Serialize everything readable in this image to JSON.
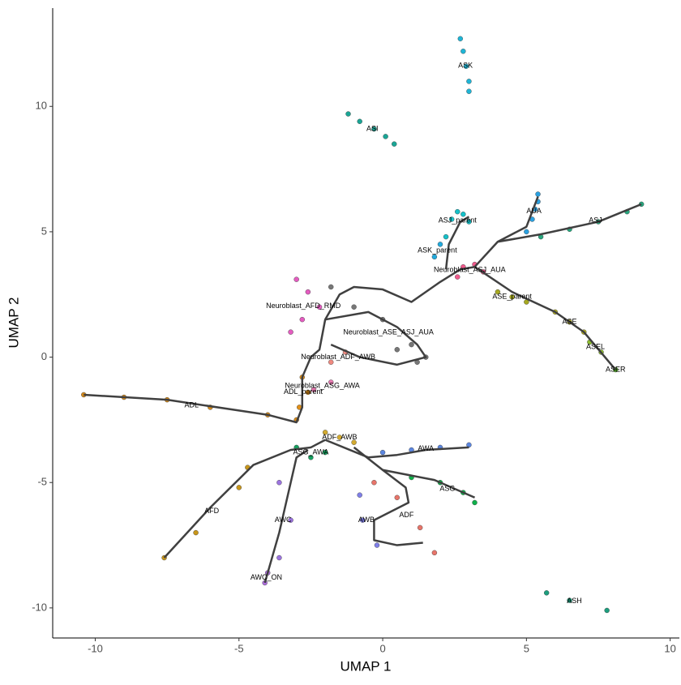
{
  "chart_data": {
    "type": "scatter",
    "xlabel": "UMAP 1",
    "ylabel": "UMAP 2",
    "xlim": [
      -11.48,
      10.32
    ],
    "ylim": [
      -11.2,
      13.92
    ],
    "xticks": [
      -10,
      -5,
      0,
      5,
      10
    ],
    "yticks": [
      -10,
      -5,
      0,
      5,
      10
    ],
    "grid": false,
    "trajectory_color": "#404040",
    "clusters": [
      {
        "label": "ASK",
        "color": "#1fb5d6",
        "x": [
          2.7,
          2.8,
          2.9,
          3.0,
          3.0
        ],
        "y": [
          12.7,
          12.2,
          11.6,
          11.0,
          10.6
        ]
      },
      {
        "label": "ASI",
        "color": "#1aa595",
        "x": [
          -1.2,
          -0.8,
          -0.3,
          0.1,
          0.4
        ],
        "y": [
          9.7,
          9.4,
          9.1,
          8.8,
          8.5
        ]
      },
      {
        "label": "AUA",
        "color": "#2aa0e0",
        "x": [
          5.0,
          5.2,
          5.3,
          5.4,
          5.4
        ],
        "y": [
          5.0,
          5.5,
          5.9,
          6.2,
          6.5
        ]
      },
      {
        "label": "ASJ_parent",
        "color": "#16c0c8",
        "x": [
          2.4,
          2.6,
          2.8,
          3.0,
          2.2
        ],
        "y": [
          5.5,
          5.8,
          5.7,
          5.4,
          4.8
        ]
      },
      {
        "label": "ASJ",
        "color": "#27a77e",
        "x": [
          5.5,
          6.5,
          7.5,
          8.5,
          9.0
        ],
        "y": [
          4.8,
          5.1,
          5.4,
          5.8,
          6.1
        ]
      },
      {
        "label": "ASK_parent",
        "color": "#22aadd",
        "x": [
          2.0,
          1.8
        ],
        "y": [
          4.5,
          4.0
        ]
      },
      {
        "label": "Neuroblast_ASJ_AUA",
        "color": "#f05a8c",
        "x": [
          2.8,
          3.2,
          3.5,
          2.6
        ],
        "y": [
          3.6,
          3.7,
          3.4,
          3.2
        ]
      },
      {
        "label": "Neuroblast_AFD_RMD",
        "color": "#e45cc0",
        "x": [
          -3.0,
          -2.6,
          -2.2,
          -2.8,
          -3.2
        ],
        "y": [
          3.1,
          2.6,
          2.0,
          1.5,
          1.0
        ]
      },
      {
        "label": "Neuroblast_ASE_ASJ_AUA",
        "color": "#777777",
        "x": [
          -1.8,
          -1.0,
          0,
          1.0,
          1.5,
          1.2,
          0.5
        ],
        "y": [
          2.8,
          2.0,
          1.5,
          0.5,
          0,
          -0.2,
          0.3
        ]
      },
      {
        "label": "ASE_parent",
        "color": "#a6a820",
        "x": [
          4.0,
          4.5,
          5.0
        ],
        "y": [
          2.6,
          2.4,
          2.2
        ]
      },
      {
        "label": "ASE",
        "color": "#b5b020",
        "x": [
          6.0,
          6.5,
          7.0
        ],
        "y": [
          1.8,
          1.4,
          1.0
        ]
      },
      {
        "label": "ASEL",
        "color": "#8cba30",
        "x": [
          7.2,
          7.6
        ],
        "y": [
          0.6,
          0.2
        ]
      },
      {
        "label": "ASER",
        "color": "#5ab82c",
        "x": [
          8.1
        ],
        "y": [
          -0.5
        ]
      },
      {
        "label": "Neuroblast_ADF_AWB",
        "color": "#f08a80",
        "x": [
          -1.8,
          -1.3
        ],
        "y": [
          -0.2,
          0.2
        ]
      },
      {
        "label": "ADL_parent",
        "color": "#e08f18",
        "x": [
          -2.8,
          -2.6,
          -2.9
        ],
        "y": [
          -0.8,
          -1.4,
          -2.0
        ]
      },
      {
        "label": "Neuroblast_ASG_AWA",
        "color": "#e67ab0",
        "x": [
          -2.4,
          -1.8
        ],
        "y": [
          -1.3,
          -1.0
        ]
      },
      {
        "label": "ADL",
        "color": "#d68a1a",
        "x": [
          -10.4,
          -9.0,
          -7.5,
          -6.0,
          -4.0,
          -3.0
        ],
        "y": [
          -1.5,
          -1.6,
          -1.7,
          -2.0,
          -2.3,
          -2.5
        ]
      },
      {
        "label": "ADF_AWB",
        "color": "#d2aa30",
        "x": [
          -2.0,
          -1.5,
          -1.0
        ],
        "y": [
          -3.0,
          -3.2,
          -3.4
        ]
      },
      {
        "label": "AWA",
        "color": "#5b86e0",
        "x": [
          0,
          1.0,
          2.0,
          3.0
        ],
        "y": [
          -3.8,
          -3.7,
          -3.6,
          -3.5
        ]
      },
      {
        "label": "ASG_AWA",
        "color": "#16a060",
        "x": [
          -3.0,
          -2.5,
          -2.0
        ],
        "y": [
          -3.6,
          -4.0,
          -3.8
        ]
      },
      {
        "label": "ASG",
        "color": "#0fb04a",
        "x": [
          1.0,
          2.0,
          2.8,
          3.2
        ],
        "y": [
          -4.8,
          -5.0,
          -5.4,
          -5.8
        ]
      },
      {
        "label": "AWB",
        "color": "#7f7fe8",
        "x": [
          -0.8,
          -0.7,
          -0.2
        ],
        "y": [
          -5.5,
          -6.5,
          -7.5
        ]
      },
      {
        "label": "AFD",
        "color": "#c8961a",
        "x": [
          -7.6,
          -6.5,
          -5.0,
          -4.7
        ],
        "y": [
          -8.0,
          -7.0,
          -5.2,
          -4.4
        ]
      },
      {
        "label": "AWC",
        "color": "#9c74e0",
        "x": [
          -3.6,
          -3.2,
          -3.6
        ],
        "y": [
          -5.0,
          -6.5,
          -8.0
        ]
      },
      {
        "label": "ADF",
        "color": "#e8756a",
        "x": [
          -0.3,
          0.5,
          1.3,
          1.8
        ],
        "y": [
          -5.0,
          -5.6,
          -6.8,
          -7.8
        ]
      },
      {
        "label": "AWC_ON",
        "color": "#b070e0",
        "x": [
          -4.1,
          -4.0
        ],
        "y": [
          -9.0,
          -8.6
        ]
      },
      {
        "label": "ASH",
        "color": "#1d9e7e",
        "x": [
          5.7,
          6.5,
          7.8
        ],
        "y": [
          -9.4,
          -9.7,
          -10.1
        ]
      }
    ],
    "trajectories": [
      {
        "x": [
          -10.4,
          -7.5,
          -4.0,
          -3.0,
          -2.8,
          -2.8,
          -2.5
        ],
        "y": [
          -1.5,
          -1.7,
          -2.3,
          -2.6,
          -2.0,
          -0.8,
          0
        ]
      },
      {
        "x": [
          -7.6,
          -6.0,
          -4.5,
          -3.2,
          -2.5,
          -2.0
        ],
        "y": [
          -8.0,
          -6.0,
          -4.3,
          -3.7,
          -3.6,
          -3.3
        ]
      },
      {
        "x": [
          -4.1,
          -3.6,
          -3.2,
          -3.0,
          -2.6
        ],
        "y": [
          -9.0,
          -7.0,
          -5.0,
          -4.0,
          -3.7
        ]
      },
      {
        "x": [
          -2.0,
          -0.5,
          0.5,
          1.5,
          3.0
        ],
        "y": [
          -3.3,
          -4.0,
          -3.9,
          -3.7,
          -3.6
        ]
      },
      {
        "x": [
          -1.0,
          0,
          0.8,
          0.9,
          -0.3,
          -0.3,
          0.5,
          1.4
        ],
        "y": [
          -3.6,
          -4.5,
          -5.2,
          -5.8,
          -6.5,
          -7.3,
          -7.5,
          -7.4
        ]
      },
      {
        "x": [
          0,
          1.8,
          3.2
        ],
        "y": [
          -4.5,
          -4.9,
          -5.6
        ]
      },
      {
        "x": [
          -2.5,
          -2.2,
          -2.0,
          -1.5,
          -1.0,
          0,
          1.0,
          1.5,
          2.0,
          2.7,
          3.2
        ],
        "y": [
          0,
          0.3,
          1.5,
          2.5,
          2.8,
          2.7,
          2.2,
          2.6,
          3.0,
          3.5,
          3.6
        ]
      },
      {
        "x": [
          3.2,
          4.5,
          6.0,
          7.0,
          8.1
        ],
        "y": [
          3.6,
          2.6,
          1.8,
          1.0,
          -0.5
        ]
      },
      {
        "x": [
          3.2,
          4.0,
          5.5,
          7.5,
          9.0
        ],
        "y": [
          3.6,
          4.6,
          4.9,
          5.4,
          6.1
        ]
      },
      {
        "x": [
          4.0,
          5.0,
          5.4
        ],
        "y": [
          4.6,
          5.2,
          6.4
        ]
      },
      {
        "x": [
          2.2,
          2.3,
          2.7,
          3.0
        ],
        "y": [
          3.5,
          4.5,
          5.4,
          5.6
        ]
      },
      {
        "x": [
          -2.0,
          -0.5,
          0.5,
          1.2,
          1.5,
          0.5,
          -0.8,
          -1.8
        ],
        "y": [
          1.5,
          1.8,
          1.2,
          0.5,
          0,
          -0.3,
          0,
          0.5
        ]
      }
    ]
  }
}
